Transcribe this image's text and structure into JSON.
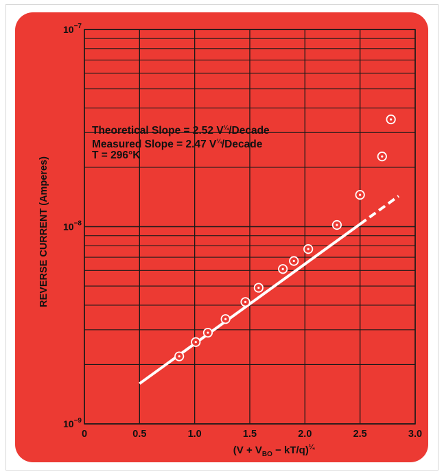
{
  "chart_data": {
    "type": "scatter",
    "x_label": "(V + V",
    "x_label_sub": "BO",
    "x_label_tail": " − kT/q)",
    "x_label_exp": "¼",
    "y_label": "REVERSE CURRENT (Amperes)",
    "x_ticks": [
      "0",
      "0.5",
      "1.0",
      "1.5",
      "2.0",
      "2.5",
      "3.0"
    ],
    "x_tick_values": [
      0,
      0.5,
      1.0,
      1.5,
      2.0,
      2.5,
      3.0
    ],
    "xlim": [
      0,
      3.0
    ],
    "y_scale": "log",
    "ylim": [
      1e-09,
      1e-07
    ],
    "y_ticks": [
      {
        "base": "10",
        "exp": "−7",
        "value": 1e-07
      },
      {
        "base": "10",
        "exp": "−8",
        "value": 1e-08
      },
      {
        "base": "10",
        "exp": "−9",
        "value": 1e-09
      }
    ],
    "grid": true,
    "annotations": [
      {
        "text": "Theoretical Slope = 2.52 V",
        "exp": "¼",
        "tail": "/Decade"
      },
      {
        "text": "Measured Slope = 2.47 V",
        "exp": "¼",
        "tail": "/Decade"
      },
      {
        "text": "T = 296°K",
        "exp": "",
        "tail": ""
      }
    ],
    "series": [
      {
        "type": "scatter",
        "marker": "circle-dot",
        "x": [
          0.86,
          1.01,
          1.12,
          1.28,
          1.46,
          1.58,
          1.8,
          1.9,
          2.03,
          2.29,
          2.5,
          2.7,
          2.78
        ],
        "y": [
          2.2e-09,
          2.6e-09,
          2.9e-09,
          3.4e-09,
          4.15e-09,
          4.9e-09,
          6.1e-09,
          6.7e-09,
          7.7e-09,
          1.02e-08,
          1.45e-08,
          2.27e-08,
          3.5e-08
        ]
      },
      {
        "type": "line",
        "style": "solid",
        "x": [
          0.5,
          2.5
        ],
        "y": [
          1.6e-09,
          1.03e-08
        ]
      },
      {
        "type": "line",
        "style": "dashed",
        "x": [
          2.5,
          2.85
        ],
        "y": [
          1.03e-08,
          1.43e-08
        ]
      }
    ]
  },
  "colors": {
    "background": "#ec3a33",
    "grid": "#1a1a1a",
    "text": "#111111",
    "fit_line": "#ffffff",
    "markers": "#ffffff"
  }
}
